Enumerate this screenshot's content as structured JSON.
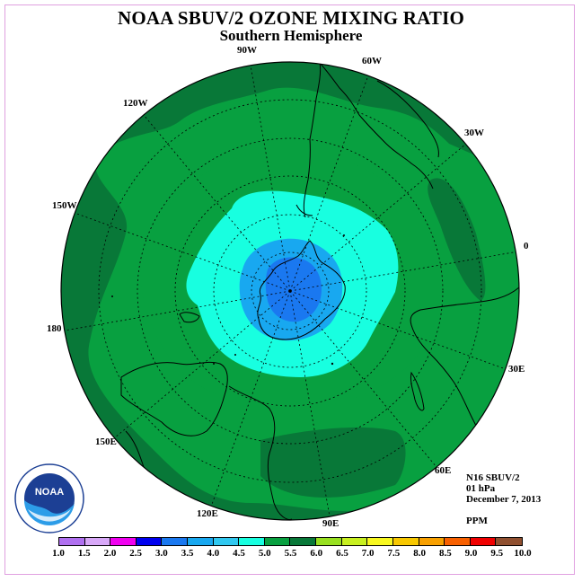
{
  "title": "NOAA SBUV/2 OZONE MIXING RATIO",
  "subtitle": "Southern Hemisphere",
  "longitude_labels": [
    "90W",
    "60W",
    "30W",
    "0",
    "30E",
    "60E",
    "90E",
    "120E",
    "150E",
    "180",
    "150W",
    "120W"
  ],
  "info": {
    "satellite": "N16 SBUV/2",
    "level": "01 hPa",
    "date": "December 7, 2013",
    "units": "PPM"
  },
  "logo": {
    "text": "NOAA"
  },
  "legend": {
    "colors": [
      "#b070f0",
      "#d8a8f8",
      "#f000f0",
      "#0000f0",
      "#1a78f0",
      "#18a8f0",
      "#30c8f0",
      "#18ffe0",
      "#08a040",
      "#087838",
      "#98e020",
      "#c8f020",
      "#f8f820",
      "#f8c800",
      "#f8a000",
      "#f86000",
      "#f00000",
      "#905030"
    ],
    "ticks": [
      "1.0",
      "1.5",
      "2.0",
      "2.5",
      "3.0",
      "3.5",
      "4.0",
      "4.5",
      "5.0",
      "5.5",
      "6.0",
      "6.5",
      "7.0",
      "7.5",
      "8.0",
      "8.5",
      "9.0",
      "9.5",
      "10.0"
    ]
  },
  "map_colors": {
    "outer": "#087838",
    "mid": "#08a040",
    "inner": "#18ffe0",
    "core": "#18a8f0",
    "center": "#1a78f0"
  }
}
